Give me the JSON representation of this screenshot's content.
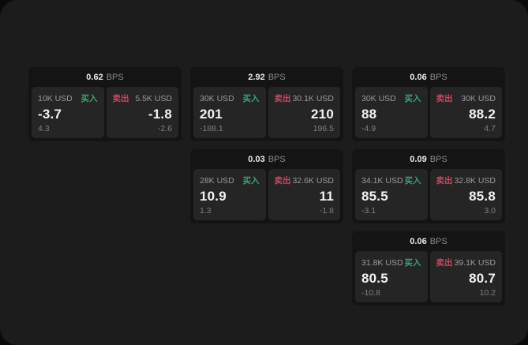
{
  "window": {
    "background": "#0a0a0a",
    "surface": "#1c1c1c"
  },
  "labels": {
    "bps_unit": "BPS",
    "buy": "买入",
    "sell": "卖出"
  },
  "colors": {
    "buy_accent": "#36a573",
    "sell_accent": "#c9475e",
    "price_text": "#f2f2f2",
    "muted_text": "#9a9a9a",
    "dim_text": "#7f7f7f",
    "card_bg": "#141414",
    "panel_bg": "#252525"
  },
  "cards": [
    {
      "grid": {
        "row": 1,
        "col": 1
      },
      "spread_bps": "0.62",
      "buy": {
        "notional": "10K USD",
        "price": "-3.7",
        "delta": "4.3"
      },
      "sell": {
        "notional": "5.5K USD",
        "price": "-1.8",
        "delta": "-2.6"
      }
    },
    {
      "grid": {
        "row": 1,
        "col": 2
      },
      "spread_bps": "2.92",
      "buy": {
        "notional": "30K USD",
        "price": "201",
        "delta": "-188.1"
      },
      "sell": {
        "notional": "30.1K USD",
        "price": "210",
        "delta": "196.5"
      }
    },
    {
      "grid": {
        "row": 1,
        "col": 3
      },
      "spread_bps": "0.06",
      "buy": {
        "notional": "30K USD",
        "price": "88",
        "delta": "-4.9"
      },
      "sell": {
        "notional": "30K USD",
        "price": "88.2",
        "delta": "4.7"
      }
    },
    {
      "grid": {
        "row": 2,
        "col": 2
      },
      "spread_bps": "0.03",
      "buy": {
        "notional": "28K USD",
        "price": "10.9",
        "delta": "1.3"
      },
      "sell": {
        "notional": "32.6K USD",
        "price": "11",
        "delta": "-1.8"
      }
    },
    {
      "grid": {
        "row": 2,
        "col": 3
      },
      "spread_bps": "0.09",
      "buy": {
        "notional": "34.1K USD",
        "price": "85.5",
        "delta": "-3.1"
      },
      "sell": {
        "notional": "32.8K USD",
        "price": "85.8",
        "delta": "3.0"
      }
    },
    {
      "grid": {
        "row": 3,
        "col": 3
      },
      "spread_bps": "0.06",
      "buy": {
        "notional": "31.8K USD",
        "price": "80.5",
        "delta": "-10.8"
      },
      "sell": {
        "notional": "39.1K USD",
        "price": "80.7",
        "delta": "10.2"
      }
    }
  ]
}
